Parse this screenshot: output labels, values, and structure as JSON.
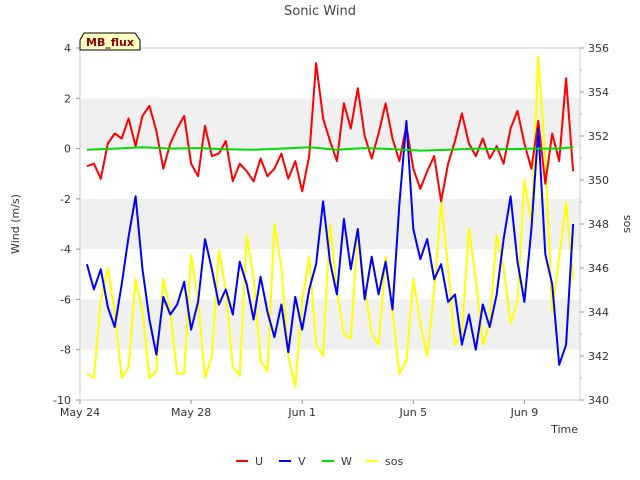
{
  "chart_data": {
    "type": "line",
    "title": "Sonic Wind",
    "badge": "MB_flux",
    "xlabel": "Time",
    "ylabel": "Wind (m/s)",
    "y2label": "sos",
    "xlim": [
      "2024-05-24",
      "2024-06-11"
    ],
    "x_ticks": [
      {
        "date": "2024-05-24",
        "label": "May 24"
      },
      {
        "date": "2024-05-28",
        "label": "May 28"
      },
      {
        "date": "2024-06-01",
        "label": "Jun 1"
      },
      {
        "date": "2024-06-05",
        "label": "Jun 5"
      },
      {
        "date": "2024-06-09",
        "label": "Jun 9"
      }
    ],
    "ylim": [
      -10,
      4
    ],
    "y_ticks": [
      4,
      2,
      0,
      -2,
      -4,
      -6,
      -8,
      -10
    ],
    "y2lim": [
      340,
      356
    ],
    "y2_ticks": [
      356,
      354,
      352,
      350,
      348,
      346,
      344,
      342,
      340
    ],
    "grid": "horizontal-bands",
    "legend_position": "bottom",
    "series": [
      {
        "name": "U",
        "axis": "left",
        "color": "#ff0000",
        "points": [
          [
            "2024-05-24T06:00",
            -0.7
          ],
          [
            "2024-05-24T12:00",
            -0.6
          ],
          [
            "2024-05-24T18:00",
            -1.2
          ],
          [
            "2024-05-25T00:00",
            0.2
          ],
          [
            "2024-05-25T06:00",
            0.6
          ],
          [
            "2024-05-25T12:00",
            0.4
          ],
          [
            "2024-05-25T18:00",
            1.2
          ],
          [
            "2024-05-26T00:00",
            0.1
          ],
          [
            "2024-05-26T06:00",
            1.3
          ],
          [
            "2024-05-26T12:00",
            1.7
          ],
          [
            "2024-05-26T18:00",
            0.7
          ],
          [
            "2024-05-27T00:00",
            -0.8
          ],
          [
            "2024-05-27T06:00",
            0.2
          ],
          [
            "2024-05-27T12:00",
            0.8
          ],
          [
            "2024-05-27T18:00",
            1.3
          ],
          [
            "2024-05-28T00:00",
            -0.6
          ],
          [
            "2024-05-28T06:00",
            -1.1
          ],
          [
            "2024-05-28T12:00",
            0.9
          ],
          [
            "2024-05-28T18:00",
            -0.3
          ],
          [
            "2024-05-29T00:00",
            -0.2
          ],
          [
            "2024-05-29T06:00",
            0.3
          ],
          [
            "2024-05-29T12:00",
            -1.3
          ],
          [
            "2024-05-29T18:00",
            -0.6
          ],
          [
            "2024-05-30T00:00",
            -0.9
          ],
          [
            "2024-05-30T06:00",
            -1.3
          ],
          [
            "2024-05-30T12:00",
            -0.4
          ],
          [
            "2024-05-30T18:00",
            -1.1
          ],
          [
            "2024-05-31T00:00",
            -0.8
          ],
          [
            "2024-05-31T06:00",
            -0.2
          ],
          [
            "2024-05-31T12:00",
            -1.2
          ],
          [
            "2024-05-31T18:00",
            -0.5
          ],
          [
            "2024-06-01T00:00",
            -1.7
          ],
          [
            "2024-06-01T06:00",
            -0.3
          ],
          [
            "2024-06-01T12:00",
            3.4
          ],
          [
            "2024-06-01T18:00",
            1.2
          ],
          [
            "2024-06-02T00:00",
            0.3
          ],
          [
            "2024-06-02T06:00",
            -0.5
          ],
          [
            "2024-06-02T12:00",
            1.8
          ],
          [
            "2024-06-02T18:00",
            0.8
          ],
          [
            "2024-06-03T00:00",
            2.4
          ],
          [
            "2024-06-03T06:00",
            0.5
          ],
          [
            "2024-06-03T12:00",
            -0.4
          ],
          [
            "2024-06-03T18:00",
            0.6
          ],
          [
            "2024-06-04T00:00",
            1.8
          ],
          [
            "2024-06-04T06:00",
            0.4
          ],
          [
            "2024-06-04T12:00",
            -0.5
          ],
          [
            "2024-06-04T18:00",
            0.9
          ],
          [
            "2024-06-05T00:00",
            -0.8
          ],
          [
            "2024-06-05T06:00",
            -1.6
          ],
          [
            "2024-06-05T12:00",
            -0.9
          ],
          [
            "2024-06-05T18:00",
            -0.3
          ],
          [
            "2024-06-06T00:00",
            -2.1
          ],
          [
            "2024-06-06T06:00",
            -0.6
          ],
          [
            "2024-06-06T12:00",
            0.3
          ],
          [
            "2024-06-06T18:00",
            1.4
          ],
          [
            "2024-06-07T00:00",
            0.2
          ],
          [
            "2024-06-07T06:00",
            -0.3
          ],
          [
            "2024-06-07T12:00",
            0.4
          ],
          [
            "2024-06-07T18:00",
            -0.4
          ],
          [
            "2024-06-08T00:00",
            0.1
          ],
          [
            "2024-06-08T06:00",
            -0.6
          ],
          [
            "2024-06-08T12:00",
            0.8
          ],
          [
            "2024-06-08T18:00",
            1.5
          ],
          [
            "2024-06-09T00:00",
            0.2
          ],
          [
            "2024-06-09T06:00",
            -0.8
          ],
          [
            "2024-06-09T12:00",
            1.1
          ],
          [
            "2024-06-09T18:00",
            -1.4
          ],
          [
            "2024-06-10T00:00",
            0.6
          ],
          [
            "2024-06-10T06:00",
            -0.5
          ],
          [
            "2024-06-10T12:00",
            2.8
          ],
          [
            "2024-06-10T18:00",
            -0.9
          ]
        ]
      },
      {
        "name": "V",
        "axis": "left",
        "color": "#0000ff",
        "points": [
          [
            "2024-05-24T06:00",
            -4.6
          ],
          [
            "2024-05-24T12:00",
            -5.6
          ],
          [
            "2024-05-24T18:00",
            -4.8
          ],
          [
            "2024-05-25T00:00",
            -6.3
          ],
          [
            "2024-05-25T06:00",
            -7.1
          ],
          [
            "2024-05-25T12:00",
            -5.4
          ],
          [
            "2024-05-25T18:00",
            -3.5
          ],
          [
            "2024-05-26T00:00",
            -1.9
          ],
          [
            "2024-05-26T06:00",
            -4.8
          ],
          [
            "2024-05-26T12:00",
            -6.8
          ],
          [
            "2024-05-26T18:00",
            -8.2
          ],
          [
            "2024-05-27T00:00",
            -5.9
          ],
          [
            "2024-05-27T06:00",
            -6.6
          ],
          [
            "2024-05-27T12:00",
            -6.2
          ],
          [
            "2024-05-27T18:00",
            -5.3
          ],
          [
            "2024-05-28T00:00",
            -7.2
          ],
          [
            "2024-05-28T06:00",
            -6.1
          ],
          [
            "2024-05-28T12:00",
            -3.6
          ],
          [
            "2024-05-28T18:00",
            -4.8
          ],
          [
            "2024-05-29T00:00",
            -6.2
          ],
          [
            "2024-05-29T06:00",
            -5.6
          ],
          [
            "2024-05-29T12:00",
            -6.6
          ],
          [
            "2024-05-29T18:00",
            -4.5
          ],
          [
            "2024-05-30T00:00",
            -5.4
          ],
          [
            "2024-05-30T06:00",
            -6.8
          ],
          [
            "2024-05-30T12:00",
            -5.1
          ],
          [
            "2024-05-30T18:00",
            -6.5
          ],
          [
            "2024-05-31T00:00",
            -7.5
          ],
          [
            "2024-05-31T06:00",
            -6.2
          ],
          [
            "2024-05-31T12:00",
            -8.1
          ],
          [
            "2024-05-31T18:00",
            -5.9
          ],
          [
            "2024-06-01T00:00",
            -7.2
          ],
          [
            "2024-06-01T06:00",
            -5.6
          ],
          [
            "2024-06-01T12:00",
            -4.6
          ],
          [
            "2024-06-01T18:00",
            -2.1
          ],
          [
            "2024-06-02T00:00",
            -4.5
          ],
          [
            "2024-06-02T06:00",
            -5.8
          ],
          [
            "2024-06-02T12:00",
            -2.8
          ],
          [
            "2024-06-02T18:00",
            -4.8
          ],
          [
            "2024-06-03T00:00",
            -3.2
          ],
          [
            "2024-06-03T06:00",
            -6.0
          ],
          [
            "2024-06-03T12:00",
            -4.3
          ],
          [
            "2024-06-03T18:00",
            -5.8
          ],
          [
            "2024-06-04T00:00",
            -4.5
          ],
          [
            "2024-06-04T06:00",
            -6.4
          ],
          [
            "2024-06-04T12:00",
            -2.2
          ],
          [
            "2024-06-04T18:00",
            1.1
          ],
          [
            "2024-06-05T00:00",
            -3.2
          ],
          [
            "2024-06-05T06:00",
            -4.4
          ],
          [
            "2024-06-05T12:00",
            -3.6
          ],
          [
            "2024-06-05T18:00",
            -5.2
          ],
          [
            "2024-06-06T00:00",
            -4.6
          ],
          [
            "2024-06-06T06:00",
            -6.1
          ],
          [
            "2024-06-06T12:00",
            -5.8
          ],
          [
            "2024-06-06T18:00",
            -7.8
          ],
          [
            "2024-06-07T00:00",
            -6.6
          ],
          [
            "2024-06-07T06:00",
            -8.0
          ],
          [
            "2024-06-07T12:00",
            -6.2
          ],
          [
            "2024-06-07T18:00",
            -7.1
          ],
          [
            "2024-06-08T00:00",
            -5.8
          ],
          [
            "2024-06-08T06:00",
            -3.6
          ],
          [
            "2024-06-08T12:00",
            -1.9
          ],
          [
            "2024-06-08T18:00",
            -4.5
          ],
          [
            "2024-06-09T00:00",
            -6.1
          ],
          [
            "2024-06-09T06:00",
            -3.2
          ],
          [
            "2024-06-09T12:00",
            0.8
          ],
          [
            "2024-06-09T18:00",
            -4.2
          ],
          [
            "2024-06-10T00:00",
            -5.4
          ],
          [
            "2024-06-10T06:00",
            -8.6
          ],
          [
            "2024-06-10T12:00",
            -7.8
          ],
          [
            "2024-06-10T18:00",
            -3.0
          ]
        ]
      },
      {
        "name": "W",
        "axis": "left",
        "color": "#00dd00",
        "points": [
          [
            "2024-05-24T06:00",
            -0.05
          ],
          [
            "2024-05-25T06:00",
            0.0
          ],
          [
            "2024-05-26T06:00",
            0.05
          ],
          [
            "2024-05-27T06:00",
            0.0
          ],
          [
            "2024-05-28T06:00",
            0.02
          ],
          [
            "2024-05-29T06:00",
            -0.03
          ],
          [
            "2024-05-30T06:00",
            -0.05
          ],
          [
            "2024-05-31T06:00",
            0.0
          ],
          [
            "2024-06-01T06:00",
            0.05
          ],
          [
            "2024-06-02T06:00",
            -0.05
          ],
          [
            "2024-06-03T06:00",
            0.02
          ],
          [
            "2024-06-04T06:00",
            -0.02
          ],
          [
            "2024-06-05T06:00",
            -0.08
          ],
          [
            "2024-06-06T06:00",
            -0.05
          ],
          [
            "2024-06-07T06:00",
            0.0
          ],
          [
            "2024-06-08T06:00",
            -0.03
          ],
          [
            "2024-06-09T06:00",
            0.0
          ],
          [
            "2024-06-10T06:00",
            0.0
          ],
          [
            "2024-06-10T18:00",
            0.05
          ]
        ]
      },
      {
        "name": "sos",
        "axis": "right",
        "color": "#ffff00",
        "points": [
          [
            "2024-05-24T06:00",
            341.2
          ],
          [
            "2024-05-24T12:00",
            341.0
          ],
          [
            "2024-05-24T18:00",
            344.5
          ],
          [
            "2024-05-25T00:00",
            346.0
          ],
          [
            "2024-05-25T06:00",
            344.0
          ],
          [
            "2024-05-25T12:00",
            341.0
          ],
          [
            "2024-05-25T18:00",
            341.5
          ],
          [
            "2024-05-26T00:00",
            345.5
          ],
          [
            "2024-05-26T06:00",
            344.0
          ],
          [
            "2024-05-26T12:00",
            341.0
          ],
          [
            "2024-05-26T18:00",
            341.3
          ],
          [
            "2024-05-27T00:00",
            345.5
          ],
          [
            "2024-05-27T06:00",
            344.0
          ],
          [
            "2024-05-27T12:00",
            341.2
          ],
          [
            "2024-05-27T18:00",
            341.2
          ],
          [
            "2024-05-28T00:00",
            346.6
          ],
          [
            "2024-05-28T06:00",
            344.5
          ],
          [
            "2024-05-28T12:00",
            341.0
          ],
          [
            "2024-05-28T18:00",
            342.0
          ],
          [
            "2024-05-29T00:00",
            346.8
          ],
          [
            "2024-05-29T06:00",
            345.0
          ],
          [
            "2024-05-29T12:00",
            341.5
          ],
          [
            "2024-05-29T18:00",
            341.1
          ],
          [
            "2024-05-30T00:00",
            347.5
          ],
          [
            "2024-05-30T06:00",
            345.5
          ],
          [
            "2024-05-30T12:00",
            341.8
          ],
          [
            "2024-05-30T18:00",
            341.3
          ],
          [
            "2024-05-31T00:00",
            348.0
          ],
          [
            "2024-05-31T06:00",
            346.0
          ],
          [
            "2024-05-31T12:00",
            342.0
          ],
          [
            "2024-05-31T18:00",
            340.6
          ],
          [
            "2024-06-01T00:00",
            344.5
          ],
          [
            "2024-06-01T06:00",
            346.5
          ],
          [
            "2024-06-01T12:00",
            342.5
          ],
          [
            "2024-06-01T18:00",
            342.0
          ],
          [
            "2024-06-02T00:00",
            348.0
          ],
          [
            "2024-06-02T06:00",
            345.0
          ],
          [
            "2024-06-02T12:00",
            343.0
          ],
          [
            "2024-06-02T18:00",
            342.8
          ],
          [
            "2024-06-03T00:00",
            347.5
          ],
          [
            "2024-06-03T06:00",
            345.2
          ],
          [
            "2024-06-03T12:00",
            343.0
          ],
          [
            "2024-06-03T18:00",
            342.5
          ],
          [
            "2024-06-04T00:00",
            346.5
          ],
          [
            "2024-06-04T06:00",
            344.0
          ],
          [
            "2024-06-04T12:00",
            341.2
          ],
          [
            "2024-06-04T18:00",
            341.8
          ],
          [
            "2024-06-05T00:00",
            345.5
          ],
          [
            "2024-06-05T06:00",
            343.5
          ],
          [
            "2024-06-05T12:00",
            342.0
          ],
          [
            "2024-06-05T18:00",
            345.0
          ],
          [
            "2024-06-06T00:00",
            349.0
          ],
          [
            "2024-06-06T06:00",
            346.0
          ],
          [
            "2024-06-06T12:00",
            342.5
          ],
          [
            "2024-06-06T18:00",
            343.0
          ],
          [
            "2024-06-07T00:00",
            347.8
          ],
          [
            "2024-06-07T06:00",
            345.5
          ],
          [
            "2024-06-07T12:00",
            342.5
          ],
          [
            "2024-06-07T18:00",
            343.5
          ],
          [
            "2024-06-08T00:00",
            347.5
          ],
          [
            "2024-06-08T06:00",
            346.0
          ],
          [
            "2024-06-08T12:00",
            343.5
          ],
          [
            "2024-06-08T18:00",
            344.5
          ],
          [
            "2024-06-09T00:00",
            350.0
          ],
          [
            "2024-06-09T06:00",
            348.0
          ],
          [
            "2024-06-09T12:00",
            355.6
          ],
          [
            "2024-06-09T18:00",
            351.0
          ],
          [
            "2024-06-10T00:00",
            344.0
          ],
          [
            "2024-06-10T06:00",
            346.5
          ],
          [
            "2024-06-10T12:00",
            349.0
          ],
          [
            "2024-06-10T18:00",
            345.5
          ]
        ]
      }
    ]
  },
  "colors": {
    "band": "#f0f0f0",
    "axis": "#cccccc",
    "badge_fill": "#ffffc0"
  }
}
